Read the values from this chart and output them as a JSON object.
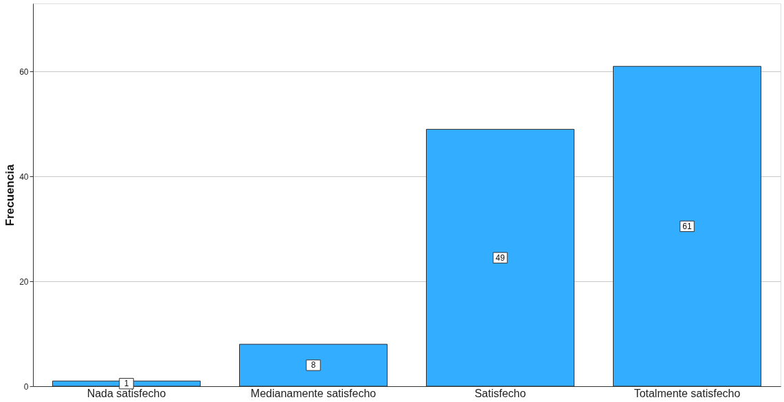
{
  "chart_data": {
    "type": "bar",
    "ylabel": "Frecuencia",
    "categories": [
      "Nada satisfecho",
      "Medianamente satisfecho",
      "Satisfecho",
      "Totalmente satisfecho"
    ],
    "values": [
      1,
      8,
      49,
      61
    ],
    "color": "#33adff",
    "ylim": [
      0,
      73
    ],
    "yticks": [
      0,
      20,
      40,
      60
    ],
    "grid": "y",
    "data_labels": true
  }
}
